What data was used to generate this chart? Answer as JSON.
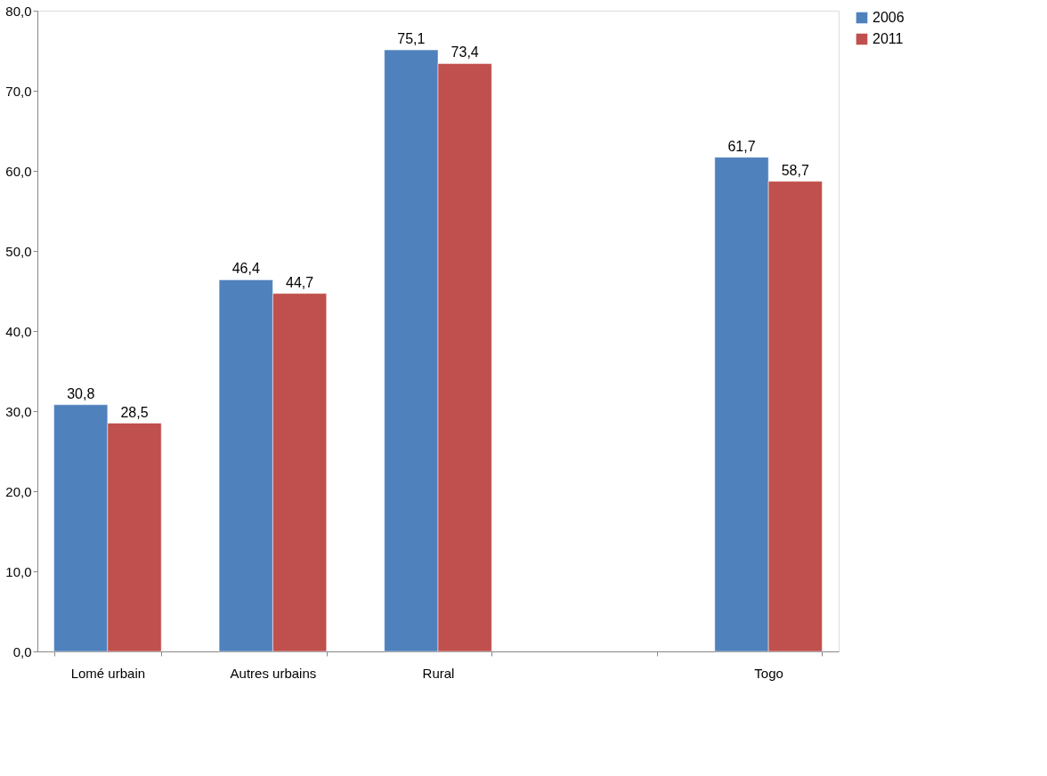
{
  "chart_data": {
    "type": "bar",
    "categories": [
      "Lomé urbain",
      "Autres urbains",
      "Rural",
      null,
      "Togo"
    ],
    "series": [
      {
        "name": "2006",
        "color": "#4f81bd",
        "values": [
          30.8,
          46.4,
          75.1,
          null,
          61.7
        ],
        "value_labels": [
          "30,8",
          "46,4",
          "75,1",
          null,
          "61,7"
        ]
      },
      {
        "name": "2011",
        "color": "#c0504d",
        "values": [
          28.5,
          44.7,
          73.4,
          null,
          58.7
        ],
        "value_labels": [
          "28,5",
          "44,7",
          "73,4",
          null,
          "58,7"
        ]
      }
    ],
    "ylim": [
      0,
      80
    ],
    "yticks": [
      {
        "value": 0,
        "label": "0,0"
      },
      {
        "value": 10,
        "label": "10,0"
      },
      {
        "value": 20,
        "label": "20,0"
      },
      {
        "value": 30,
        "label": "30,0"
      },
      {
        "value": 40,
        "label": "40,0"
      },
      {
        "value": 50,
        "label": "50,0"
      },
      {
        "value": 60,
        "label": "60,0"
      },
      {
        "value": 70,
        "label": "70,0"
      },
      {
        "value": 80,
        "label": "80,0"
      }
    ],
    "grid": false,
    "legend": "right"
  }
}
